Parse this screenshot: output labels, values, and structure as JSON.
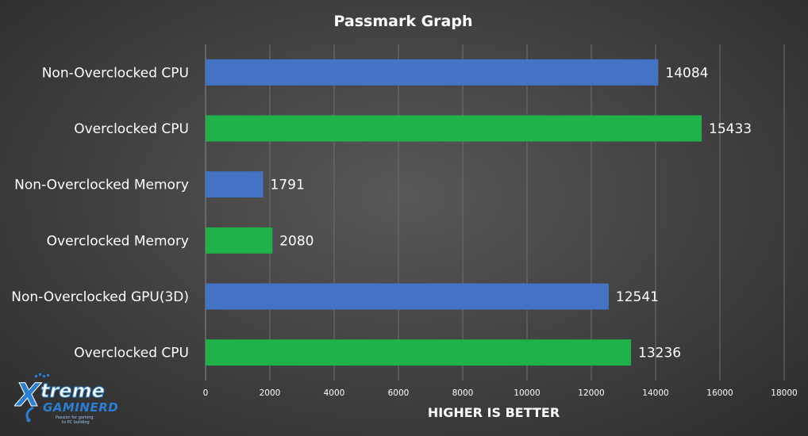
{
  "chart_data": {
    "type": "bar",
    "orientation": "horizontal",
    "title": "Passmark Graph",
    "xlabel": "HIGHER IS BETTER",
    "ylabel": "",
    "xlim": [
      0,
      18000
    ],
    "xticks": [
      0,
      2000,
      4000,
      6000,
      8000,
      10000,
      12000,
      14000,
      16000,
      18000
    ],
    "grid": true,
    "categories": [
      "Non-Overclocked CPU",
      "Overclocked CPU",
      "Non-Overclocked Memory",
      "Overclocked Memory",
      "Non-Overclocked GPU(3D)",
      "Overclocked CPU"
    ],
    "values": [
      14084,
      15433,
      1791,
      2080,
      12541,
      13236
    ],
    "bar_colors": [
      "#4472c4",
      "#1fb24a",
      "#4472c4",
      "#1fb24a",
      "#4472c4",
      "#1fb24a"
    ]
  },
  "logo": {
    "word": "treme",
    "initial": "X",
    "subword": "GAMINERD",
    "tagline_line1": "Passion for gaming",
    "tagline_line2": "to PC building",
    "color_primary": "#2a7fd4",
    "color_secondary": "#ffffff"
  }
}
